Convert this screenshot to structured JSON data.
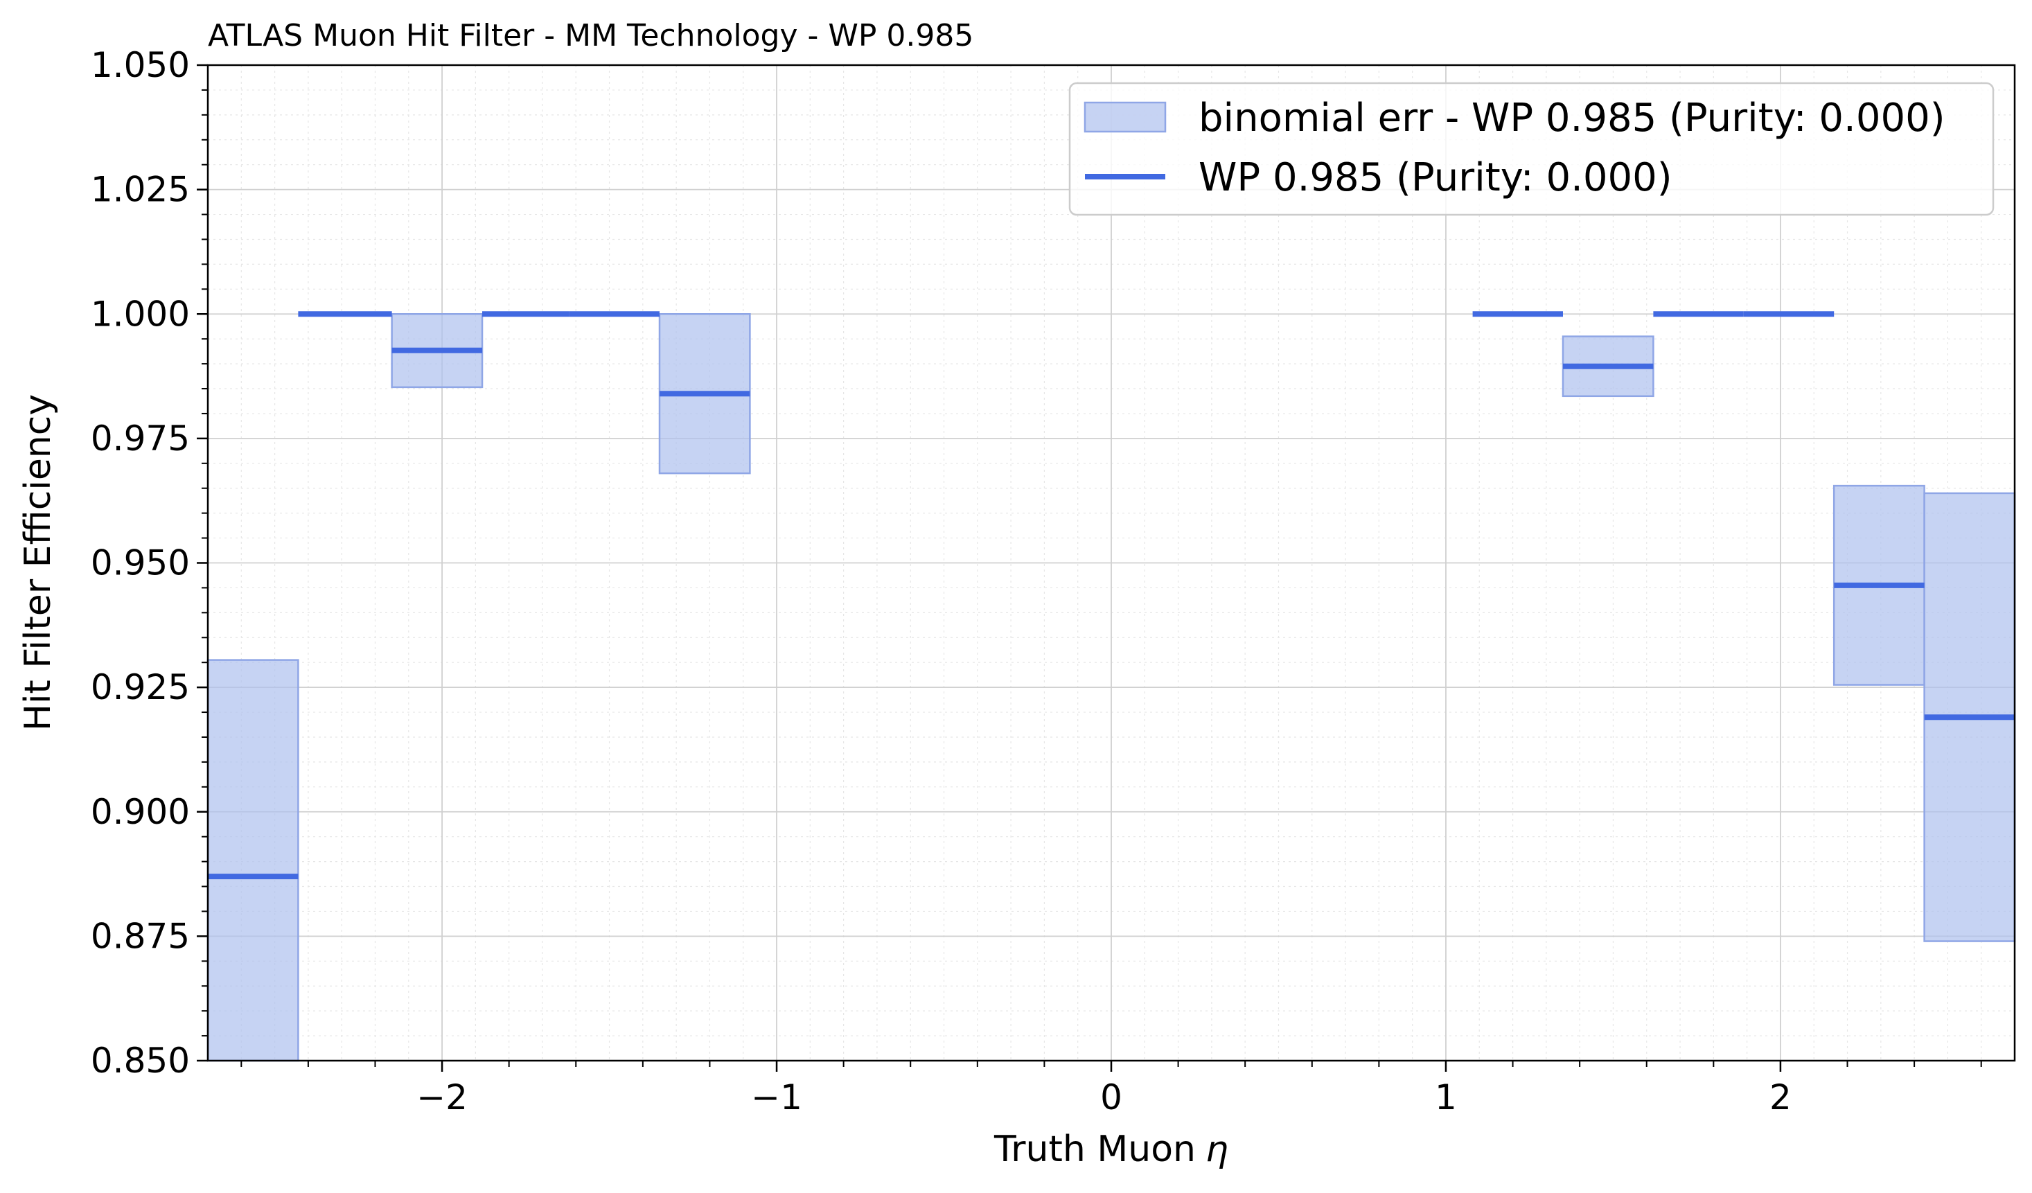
{
  "chart_data": {
    "type": "bar",
    "title": "ATLAS Muon Hit Filter - MM Technology - WP 0.985",
    "xlabel": "Truth Muon",
    "xlabel_symbol": "η",
    "ylabel": "Hit Filter Efficiency",
    "xlim": [
      -2.7,
      2.7
    ],
    "ylim": [
      0.85,
      1.05
    ],
    "grid": true,
    "legend_position": "top-right",
    "accent_color": "#4169e1",
    "band_color": "#aec0ee",
    "x_ticks": [
      -2,
      -1,
      0,
      1,
      2
    ],
    "x_tick_labels": [
      "−2",
      "−1",
      "0",
      "1",
      "2"
    ],
    "y_ticks": [
      0.85,
      0.875,
      0.9,
      0.925,
      0.95,
      0.975,
      1.0,
      1.025,
      1.05
    ],
    "y_tick_labels": [
      "0.850",
      "0.875",
      "0.900",
      "0.925",
      "0.950",
      "0.975",
      "1.000",
      "1.025",
      "1.050"
    ],
    "series": [
      {
        "name": "WP 0.985 (Purity: 0.000)",
        "kind": "step",
        "bins": [
          {
            "x0": -2.7,
            "x1": -2.43,
            "y": 0.887
          },
          {
            "x0": -2.43,
            "x1": -2.15,
            "y": 1.0
          },
          {
            "x0": -2.15,
            "x1": -1.88,
            "y": 0.9927
          },
          {
            "x0": -1.88,
            "x1": -1.62,
            "y": 1.0
          },
          {
            "x0": -1.62,
            "x1": -1.35,
            "y": 1.0
          },
          {
            "x0": -1.35,
            "x1": -1.08,
            "y": 0.984
          },
          {
            "x0": 1.08,
            "x1": 1.35,
            "y": 1.0
          },
          {
            "x0": 1.35,
            "x1": 1.62,
            "y": 0.9895
          },
          {
            "x0": 1.62,
            "x1": 1.89,
            "y": 1.0
          },
          {
            "x0": 1.89,
            "x1": 2.16,
            "y": 1.0
          },
          {
            "x0": 2.16,
            "x1": 2.43,
            "y": 0.9455
          },
          {
            "x0": 2.43,
            "x1": 2.7,
            "y": 0.919
          }
        ]
      },
      {
        "name": "binomial err - WP 0.985 (Purity: 0.000)",
        "kind": "band",
        "bins": [
          {
            "x0": -2.7,
            "x1": -2.43,
            "low": 0.85,
            "high": 0.9305
          },
          {
            "x0": -2.15,
            "x1": -1.88,
            "low": 0.9853,
            "high": 1.0
          },
          {
            "x0": -1.35,
            "x1": -1.08,
            "low": 0.968,
            "high": 1.0
          },
          {
            "x0": 1.35,
            "x1": 1.62,
            "low": 0.9835,
            "high": 0.9955
          },
          {
            "x0": 2.16,
            "x1": 2.43,
            "low": 0.9255,
            "high": 0.9655
          },
          {
            "x0": 2.43,
            "x1": 2.7,
            "low": 0.874,
            "high": 0.964
          }
        ]
      }
    ]
  }
}
